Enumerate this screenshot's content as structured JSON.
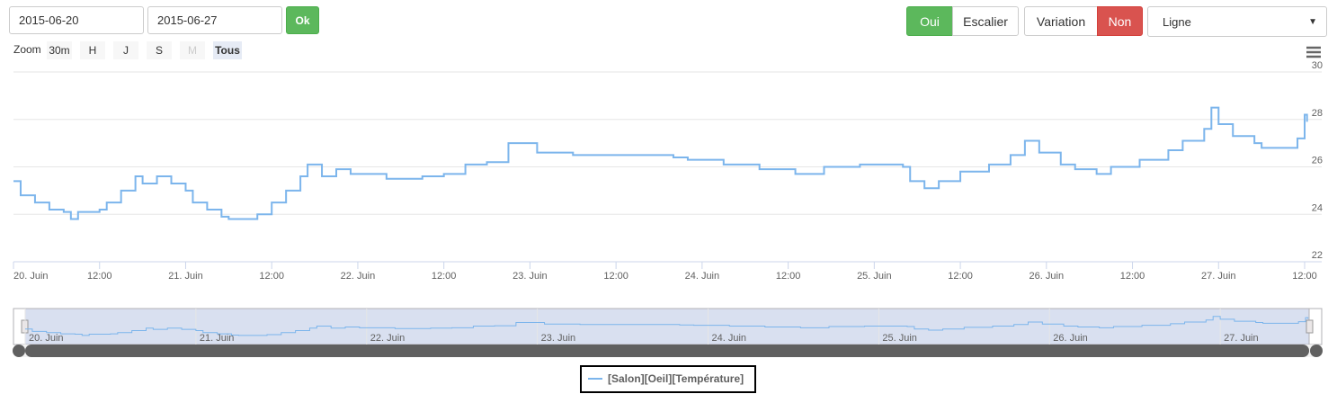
{
  "controls": {
    "date_from": "2015-06-20",
    "date_to": "2015-06-27",
    "ok": "Ok",
    "zoom_label": "Zoom",
    "zoom_buttons": [
      "30m",
      "H",
      "J",
      "S",
      "M",
      "Tous"
    ],
    "step_toggle": [
      "Oui",
      "Escalier"
    ],
    "variation_toggle": [
      "Variation",
      "Non"
    ],
    "chart_type": "Ligne"
  },
  "chart_data": {
    "type": "line",
    "step": true,
    "color": "#7cb5ec",
    "grid": true,
    "xlim": [
      "2015-06-20T00:00",
      "2015-06-27T12:30"
    ],
    "ylim": [
      22,
      30
    ],
    "yticks": [
      22,
      24,
      26,
      28,
      30
    ],
    "xticks": [
      {
        "value": "2015-06-20T00:00",
        "label": "20. Juin"
      },
      {
        "value": "2015-06-20T12:00",
        "label": "12:00"
      },
      {
        "value": "2015-06-21T00:00",
        "label": "21. Juin"
      },
      {
        "value": "2015-06-21T12:00",
        "label": "12:00"
      },
      {
        "value": "2015-06-22T00:00",
        "label": "22. Juin"
      },
      {
        "value": "2015-06-22T12:00",
        "label": "12:00"
      },
      {
        "value": "2015-06-23T00:00",
        "label": "23. Juin"
      },
      {
        "value": "2015-06-23T12:00",
        "label": "12:00"
      },
      {
        "value": "2015-06-24T00:00",
        "label": "24. Juin"
      },
      {
        "value": "2015-06-24T12:00",
        "label": "12:00"
      },
      {
        "value": "2015-06-25T00:00",
        "label": "25. Juin"
      },
      {
        "value": "2015-06-25T12:00",
        "label": "12:00"
      },
      {
        "value": "2015-06-26T00:00",
        "label": "26. Juin"
      },
      {
        "value": "2015-06-26T12:00",
        "label": "12:00"
      },
      {
        "value": "2015-06-27T00:00",
        "label": "27. Juin"
      },
      {
        "value": "2015-06-27T12:00",
        "label": "12:00"
      }
    ],
    "navigator_xticks": [
      {
        "value": "2015-06-20T00:00",
        "label": "20. Juin"
      },
      {
        "value": "2015-06-21T00:00",
        "label": "21. Juin"
      },
      {
        "value": "2015-06-22T00:00",
        "label": "22. Juin"
      },
      {
        "value": "2015-06-23T00:00",
        "label": "23. Juin"
      },
      {
        "value": "2015-06-24T00:00",
        "label": "24. Juin"
      },
      {
        "value": "2015-06-25T00:00",
        "label": "25. Juin"
      },
      {
        "value": "2015-06-26T00:00",
        "label": "26. Juin"
      },
      {
        "value": "2015-06-27T00:00",
        "label": "27. Juin"
      }
    ],
    "x": [
      "2015-06-20T00:00",
      "2015-06-20T01:00",
      "2015-06-20T03:00",
      "2015-06-20T05:00",
      "2015-06-20T07:00",
      "2015-06-20T08:00",
      "2015-06-20T09:00",
      "2015-06-20T12:00",
      "2015-06-20T13:00",
      "2015-06-20T15:00",
      "2015-06-20T17:00",
      "2015-06-20T18:00",
      "2015-06-20T20:00",
      "2015-06-20T22:00",
      "2015-06-21T00:00",
      "2015-06-21T01:00",
      "2015-06-21T03:00",
      "2015-06-21T05:00",
      "2015-06-21T06:00",
      "2015-06-21T10:00",
      "2015-06-21T12:00",
      "2015-06-21T14:00",
      "2015-06-21T16:00",
      "2015-06-21T17:00",
      "2015-06-21T19:00",
      "2015-06-21T21:00",
      "2015-06-21T23:00",
      "2015-06-22T04:00",
      "2015-06-22T09:00",
      "2015-06-22T12:00",
      "2015-06-22T15:00",
      "2015-06-22T18:00",
      "2015-06-22T21:00",
      "2015-06-23T01:00",
      "2015-06-23T06:00",
      "2015-06-23T12:00",
      "2015-06-23T20:00",
      "2015-06-23T22:00",
      "2015-06-24T03:00",
      "2015-06-24T08:00",
      "2015-06-24T13:00",
      "2015-06-24T17:00",
      "2015-06-24T22:00",
      "2015-06-25T04:00",
      "2015-06-25T05:00",
      "2015-06-25T07:00",
      "2015-06-25T09:00",
      "2015-06-25T12:00",
      "2015-06-25T16:00",
      "2015-06-25T19:00",
      "2015-06-25T21:00",
      "2015-06-25T23:00",
      "2015-06-26T02:00",
      "2015-06-26T04:00",
      "2015-06-26T07:00",
      "2015-06-26T09:00",
      "2015-06-26T13:00",
      "2015-06-26T17:00",
      "2015-06-26T19:00",
      "2015-06-26T22:00",
      "2015-06-26T23:00",
      "2015-06-27T00:00",
      "2015-06-27T02:00",
      "2015-06-27T05:00",
      "2015-06-27T06:00",
      "2015-06-27T10:00",
      "2015-06-27T11:00",
      "2015-06-27T12:00",
      "2015-06-27T12:20"
    ],
    "series": [
      {
        "name": "[Salon][Oeil][Température]",
        "color": "#7cb5ec",
        "values": [
          25.4,
          24.8,
          24.5,
          24.2,
          24.1,
          23.8,
          24.1,
          24.2,
          24.5,
          25.0,
          25.6,
          25.3,
          25.6,
          25.3,
          25.0,
          24.5,
          24.2,
          23.9,
          23.8,
          24.0,
          24.5,
          25.0,
          25.6,
          26.1,
          25.6,
          25.9,
          25.7,
          25.5,
          25.6,
          25.7,
          26.1,
          26.2,
          27.0,
          26.6,
          26.5,
          26.5,
          26.4,
          26.3,
          26.1,
          25.9,
          25.7,
          26.0,
          26.1,
          26.0,
          25.4,
          25.1,
          25.4,
          25.8,
          26.1,
          26.5,
          27.1,
          26.6,
          26.1,
          25.9,
          25.7,
          26.0,
          26.3,
          26.7,
          27.1,
          27.6,
          28.5,
          27.8,
          27.3,
          27.0,
          26.8,
          26.8,
          27.2,
          28.2,
          27.9
        ]
      }
    ]
  }
}
